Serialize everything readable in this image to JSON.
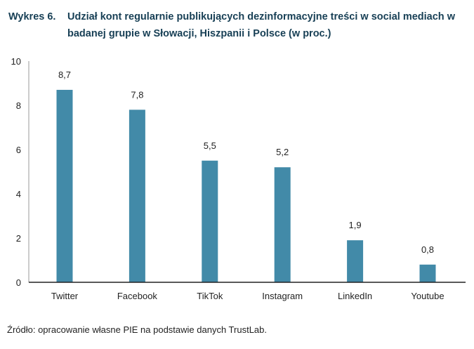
{
  "chart_data": {
    "type": "bar",
    "title_number": "Wykres 6.",
    "title": "Udział kont regularnie publikujących dezinformacyjne treści w social mediach w badanej grupie w Słowacji, Hiszpanii i Polsce (w proc.)",
    "categories": [
      "Twitter",
      "Facebook",
      "TikTok",
      "Instagram",
      "LinkedIn",
      "Youtube"
    ],
    "values": [
      8.7,
      7.8,
      5.5,
      5.2,
      1.9,
      0.8
    ],
    "value_labels": [
      "8,7",
      "7,8",
      "5,5",
      "5,2",
      "1,9",
      "0,8"
    ],
    "yticks": [
      0,
      2,
      4,
      6,
      8,
      10
    ],
    "ylim": [
      0,
      10
    ],
    "xlabel": "",
    "ylabel": "",
    "grid": false,
    "bar_color": "#428aa8"
  },
  "source": "Źródło: opracowanie własne PIE na podstawie danych TrustLab."
}
